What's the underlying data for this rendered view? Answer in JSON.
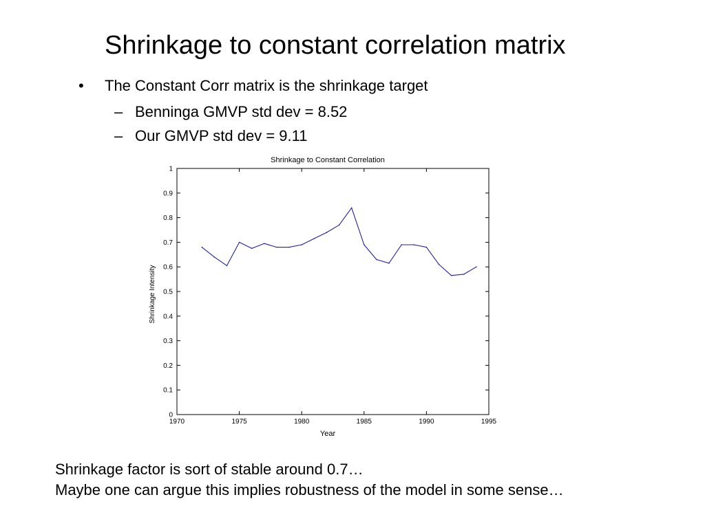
{
  "slide": {
    "title": "Shrinkage to constant correlation matrix",
    "bullets": [
      {
        "mark": "•",
        "text": "The Constant Corr matrix is the shrinkage target",
        "sub": [
          {
            "mark": "–",
            "text": "Benninga GMVP std dev = 8.52"
          },
          {
            "mark": "–",
            "text": "Our GMVP std dev = 9.11"
          }
        ]
      }
    ],
    "footer": [
      "Shrinkage factor is sort of stable around 0.7…",
      "Maybe one can argue this implies robustness of the model in some sense…"
    ]
  },
  "chart_data": {
    "type": "line",
    "title": "Shrinkage to Constant Correlation",
    "xlabel": "Year",
    "ylabel": "Shrinkage Intensity",
    "xlim": [
      1970,
      1995
    ],
    "ylim": [
      0,
      1
    ],
    "xticks": [
      1970,
      1975,
      1980,
      1985,
      1990,
      1995
    ],
    "yticks": [
      0,
      0.1,
      0.2,
      0.3,
      0.4,
      0.5,
      0.6,
      0.7,
      0.8,
      0.9,
      1
    ],
    "grid": false,
    "line_color": "#1f1fa8",
    "series": [
      {
        "x": [
          1972,
          1973,
          1974,
          1975,
          1976,
          1977,
          1978,
          1979,
          1980,
          1981,
          1982,
          1983,
          1984,
          1985,
          1986,
          1987,
          1988,
          1989,
          1990,
          1991,
          1992,
          1993,
          1994
        ],
        "values": [
          0.68,
          0.64,
          0.605,
          0.7,
          0.675,
          0.695,
          0.68,
          0.68,
          0.69,
          0.715,
          0.74,
          0.77,
          0.84,
          0.69,
          0.63,
          0.615,
          0.69,
          0.69,
          0.68,
          0.61,
          0.565,
          0.57,
          0.6
        ]
      }
    ]
  }
}
